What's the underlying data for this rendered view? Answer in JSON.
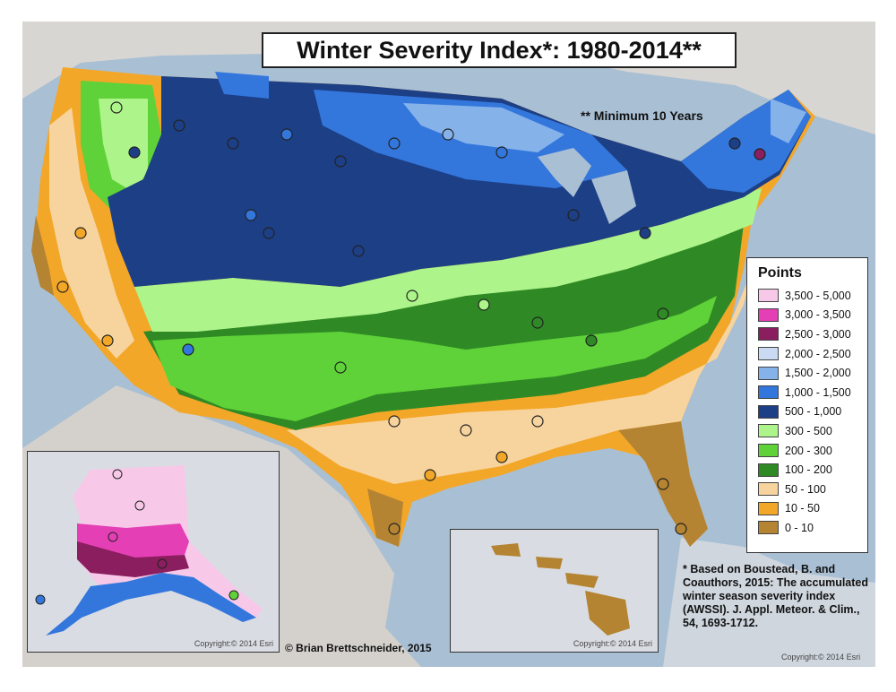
{
  "title": "Winter Severity Index*: 1980-2014**",
  "minimum_note": "** Minimum 10 Years",
  "legend": {
    "title": "Points",
    "items": [
      {
        "label": "3,500 - 5,000",
        "color": "#f7c8e8"
      },
      {
        "label": "3,000 - 3,500",
        "color": "#e43fb5"
      },
      {
        "label": "2,500 - 3,000",
        "color": "#8b1e5e"
      },
      {
        "label": "2,000 - 2,500",
        "color": "#c9daf2"
      },
      {
        "label": "1,500 - 2,000",
        "color": "#86b2ea"
      },
      {
        "label": "1,000 - 1,500",
        "color": "#3377dd"
      },
      {
        "label": "500 - 1,000",
        "color": "#1d3f86"
      },
      {
        "label": "300 - 500",
        "color": "#adf58a"
      },
      {
        "label": "200 - 300",
        "color": "#5ed238"
      },
      {
        "label": "100 - 200",
        "color": "#2f8a25"
      },
      {
        "label": "50 - 100",
        "color": "#f7d49e"
      },
      {
        "label": "10 - 50",
        "color": "#f3a728"
      },
      {
        "label": "0 - 10",
        "color": "#b58432"
      }
    ]
  },
  "copyright": {
    "alaska": "Copyright:© 2014 Esri",
    "hawaii": "Copyright:© 2014 Esri",
    "main": "Copyright:© 2014 Esri"
  },
  "credit": "© Brian Brettschneider, 2015",
  "footnote": "* Based on Boustead, B. and Coauthors, 2015: The accumulated winter season severity index (AWSSI). J. Appl. Meteor. & Clim., 54, 1693-1712."
}
